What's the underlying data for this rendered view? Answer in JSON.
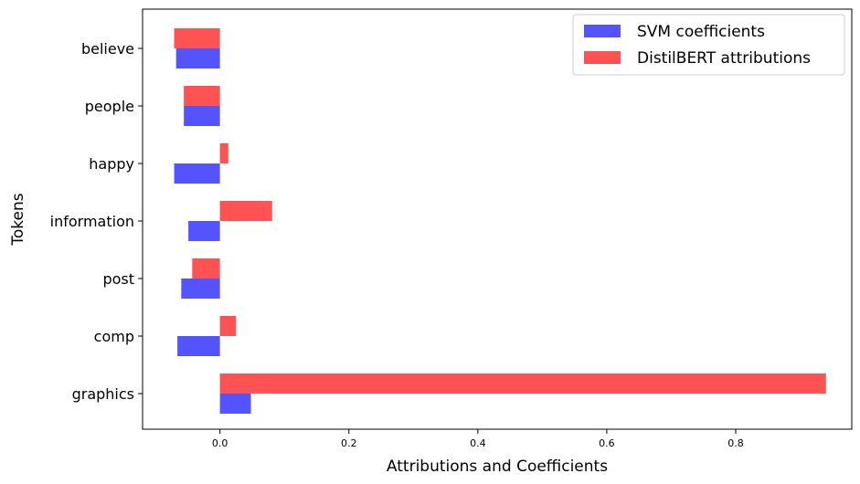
{
  "chart_data": {
    "type": "bar",
    "orientation": "horizontal",
    "categories": [
      "graphics",
      "comp",
      "post",
      "information",
      "happy",
      "people",
      "believe"
    ],
    "series": [
      {
        "name": "SVM coefficients",
        "color": "#4a4aff",
        "values": [
          0.048,
          -0.066,
          -0.06,
          -0.049,
          -0.071,
          -0.056,
          -0.068
        ]
      },
      {
        "name": "DistilBERT attributions",
        "color": "#ff4a4a",
        "values": [
          0.94,
          0.025,
          -0.043,
          0.081,
          0.013,
          -0.056,
          -0.071
        ]
      }
    ],
    "xlabel": "Attributions and Coefficients",
    "ylabel": "Tokens",
    "xlim": [
      -0.12,
      0.98
    ],
    "xticks": [
      0.0,
      0.2,
      0.4,
      0.6,
      0.8
    ],
    "xtick_labels": [
      "0.0",
      "0.2",
      "0.4",
      "0.6",
      "0.8"
    ],
    "legend_position": "top-right",
    "grid": false
  }
}
